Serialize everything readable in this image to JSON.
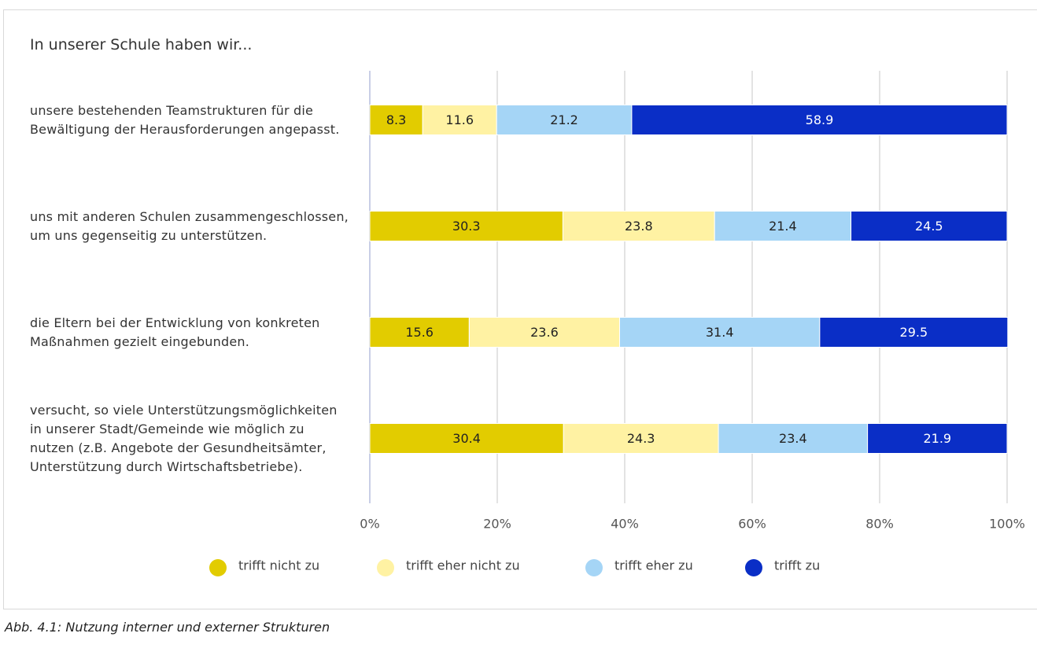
{
  "chart_data": {
    "type": "stacked-barh",
    "title": "In unserer Schule haben wir...",
    "caption": "Abb. 4.1: Nutzung interner und externer Strukturen",
    "categories": [
      "unsere bestehenden Teamstrukturen für die Bewältigung der Herausforderungen angepasst.",
      "uns mit anderen Schulen zusammengeschlossen, um uns gegenseitig zu unterstützen.",
      "die Eltern bei der Entwicklung von konkreten Maßnahmen gezielt eingebunden.",
      "versucht, so viele Unterstützungsmöglichkeiten in unserer Stadt/Gemeinde wie möglich zu nutzen (z.B. Angebote der Gesundheitsämter, Unterstützung durch Wirtschaftsbetriebe)."
    ],
    "series": [
      {
        "name": "trifft nicht zu",
        "color": "#e2cc00",
        "label_color": "#222",
        "values": [
          8.3,
          30.3,
          15.6,
          30.4
        ]
      },
      {
        "name": "trifft eher nicht zu",
        "color": "#fff2a3",
        "label_color": "#222",
        "values": [
          11.6,
          23.8,
          23.6,
          24.3
        ]
      },
      {
        "name": "trifft eher zu",
        "color": "#a5d5f6",
        "label_color": "#222",
        "values": [
          21.2,
          21.4,
          31.4,
          23.4
        ]
      },
      {
        "name": "trifft zu",
        "color": "#0a2ec6",
        "label_color": "#fff",
        "values": [
          58.9,
          24.5,
          29.5,
          21.9
        ]
      }
    ],
    "xlim": [
      0,
      100
    ],
    "xticks": [
      {
        "value": 0,
        "label": "0%"
      },
      {
        "value": 20,
        "label": "20%"
      },
      {
        "value": 40,
        "label": "40%"
      },
      {
        "value": 60,
        "label": "60%"
      },
      {
        "value": 80,
        "label": "80%"
      },
      {
        "value": 100,
        "label": "100%"
      }
    ],
    "grid": true,
    "legend": "bottom"
  }
}
